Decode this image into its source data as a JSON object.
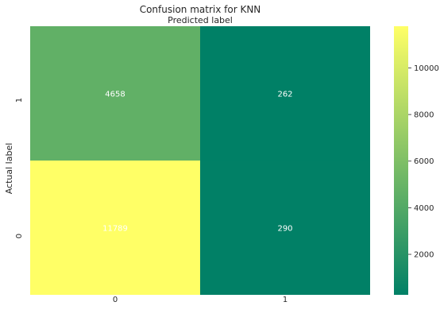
{
  "chart_data": {
    "type": "heatmap",
    "title": "Confusion matrix for KNN",
    "xlabel": "Predicted label",
    "ylabel": "Actual label",
    "x_categories": [
      "0",
      "1"
    ],
    "y_categories": [
      "1",
      "0"
    ],
    "values": [
      [
        4658,
        262
      ],
      [
        11789,
        290
      ]
    ],
    "cell_labels": [
      [
        "4658",
        "262"
      ],
      [
        "11789",
        "290"
      ]
    ],
    "colorbar": {
      "min": 262,
      "max": 11789,
      "ticks": [
        2000,
        4000,
        6000,
        8000,
        10000
      ],
      "tick_labels": [
        "2000",
        "4000",
        "6000",
        "8000",
        "10000"
      ]
    },
    "colormap": "summer",
    "colors": {
      "low": "#008066",
      "high": "#ffff66",
      "annotation_text": "#ffffff",
      "axis_text": "#262626"
    },
    "grid": false,
    "x_axis_label_position": "top"
  }
}
